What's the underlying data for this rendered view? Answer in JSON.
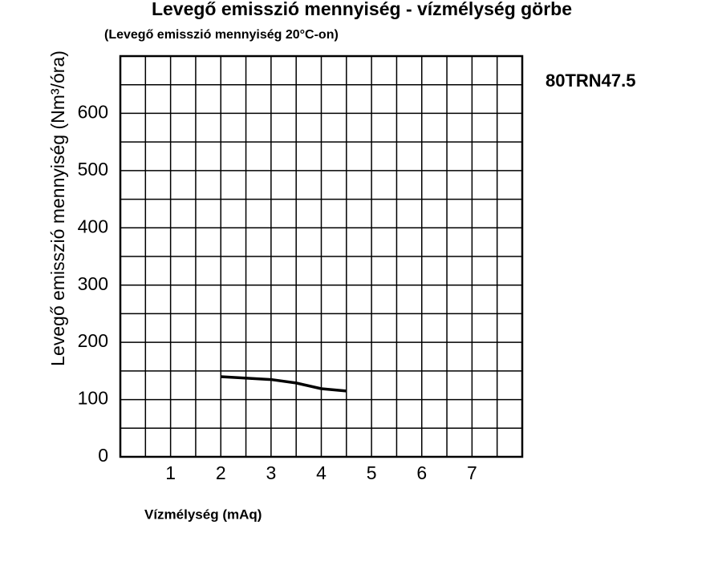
{
  "chart_data": {
    "type": "line",
    "title": "Levegő emisszió mennyiség - vízmélység görbe",
    "subtitle": "(Levegő emisszió mennyiség 20°C-on)",
    "annotation": "80TRN47.5",
    "x_label": "Vízmélység (mAq)",
    "y_label": "Levegő emisszió mennyiség (Nm³/óra)",
    "x": [
      2,
      3,
      3.5,
      4,
      4.5
    ],
    "series": [
      {
        "name": "80TRN47.5",
        "color": "#000000",
        "values": [
          140,
          135,
          129,
          119,
          115
        ]
      }
    ],
    "xlim": [
      0,
      8
    ],
    "xticks": [
      1,
      2,
      3,
      4,
      5,
      6,
      7
    ],
    "x_minor_ticks": [
      0.5,
      1.5,
      2.5,
      3.5,
      4.5,
      5.5,
      6.5,
      7.5
    ],
    "ylim": [
      0,
      700
    ],
    "yticks": [
      0,
      100,
      200,
      300,
      400,
      500,
      600
    ],
    "y_minor_ticks": [
      50,
      150,
      250,
      350,
      450,
      550,
      650
    ],
    "grid": true
  }
}
